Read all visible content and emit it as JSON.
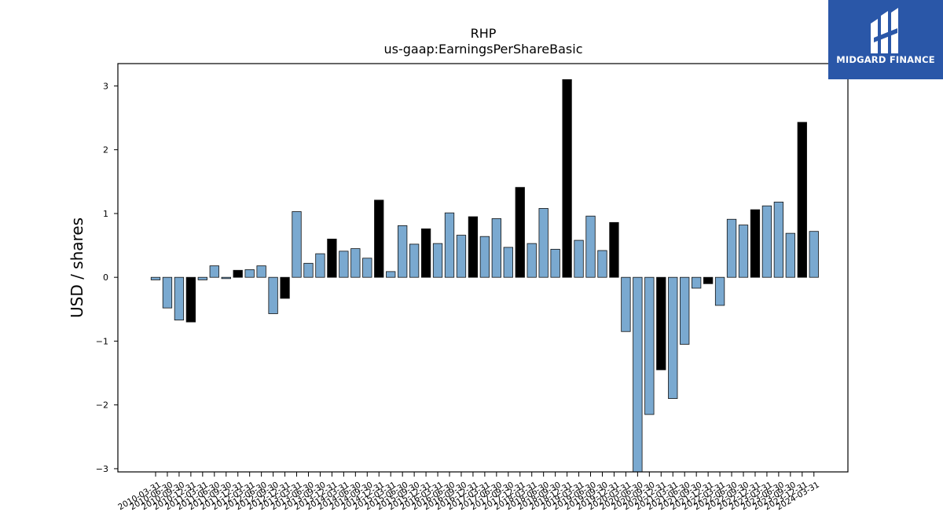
{
  "logo": {
    "text": "MIDGARD FINANCE"
  },
  "colors": {
    "normal": "#7aa9d0",
    "highlight": "#000000",
    "edge": "#111111"
  },
  "chart_data": {
    "type": "bar",
    "title": "RHP",
    "subtitle": "us-gaap:EarningsPerShareBasic",
    "ylabel": "USD / shares",
    "xlabel": "",
    "ylim": [
      -3.05,
      3.35
    ],
    "yticks": [
      3,
      2,
      1,
      0,
      -1,
      -2,
      -3
    ],
    "ytick_labels": [
      "3",
      "2",
      "1",
      "0",
      "−1",
      "−2",
      "−3"
    ],
    "grid": false,
    "categories": [
      "2010-03-31",
      "2010-06-30",
      "2010-09-30",
      "2010-12-31",
      "2011-03-31",
      "2011-06-30",
      "2011-09-30",
      "2011-12-31",
      "2012-03-31",
      "2012-06-30",
      "2012-09-30",
      "2012-12-31",
      "2013-03-31",
      "2013-06-30",
      "2013-09-30",
      "2013-12-31",
      "2014-03-31",
      "2014-06-30",
      "2014-09-30",
      "2014-12-31",
      "2015-03-31",
      "2015-06-30",
      "2015-09-30",
      "2015-12-31",
      "2016-03-31",
      "2016-06-30",
      "2016-09-30",
      "2016-12-31",
      "2017-03-31",
      "2017-06-30",
      "2017-09-30",
      "2017-12-31",
      "2018-03-31",
      "2018-06-30",
      "2018-09-30",
      "2018-12-31",
      "2019-03-31",
      "2019-06-30",
      "2019-09-30",
      "2019-12-31",
      "2020-03-31",
      "2020-06-30",
      "2020-09-30",
      "2020-12-31",
      "2021-03-31",
      "2021-06-30",
      "2021-09-30",
      "2021-12-31",
      "2022-03-31",
      "2022-06-30",
      "2022-09-30",
      "2022-12-31",
      "2023-03-31",
      "2023-06-30",
      "2023-09-30",
      "2023-12-31",
      "2024-03-31"
    ],
    "values": [
      -0.04,
      -0.48,
      -0.67,
      -0.7,
      -0.04,
      0.18,
      -0.02,
      0.11,
      0.12,
      0.18,
      -0.57,
      -0.33,
      1.03,
      0.22,
      0.37,
      0.6,
      0.41,
      0.45,
      0.3,
      1.21,
      0.09,
      0.81,
      0.52,
      0.76,
      0.53,
      1.01,
      0.66,
      0.95,
      0.64,
      0.92,
      0.47,
      1.41,
      0.53,
      1.08,
      0.44,
      3.1,
      0.58,
      0.96,
      0.42,
      0.86,
      -0.85,
      -3.05,
      -2.15,
      -1.45,
      -1.9,
      -1.05,
      -0.17,
      -0.1,
      -0.44,
      0.91,
      0.82,
      1.06,
      1.12,
      1.18,
      0.69,
      2.43,
      0.72
    ],
    "highlighted": [
      false,
      false,
      false,
      true,
      false,
      false,
      false,
      true,
      false,
      false,
      false,
      true,
      false,
      false,
      false,
      true,
      false,
      false,
      false,
      true,
      false,
      false,
      false,
      true,
      false,
      false,
      false,
      true,
      false,
      false,
      false,
      true,
      false,
      false,
      false,
      true,
      false,
      false,
      false,
      true,
      false,
      false,
      false,
      true,
      false,
      false,
      false,
      true,
      false,
      false,
      false,
      true,
      false,
      false,
      false,
      true,
      false
    ]
  }
}
